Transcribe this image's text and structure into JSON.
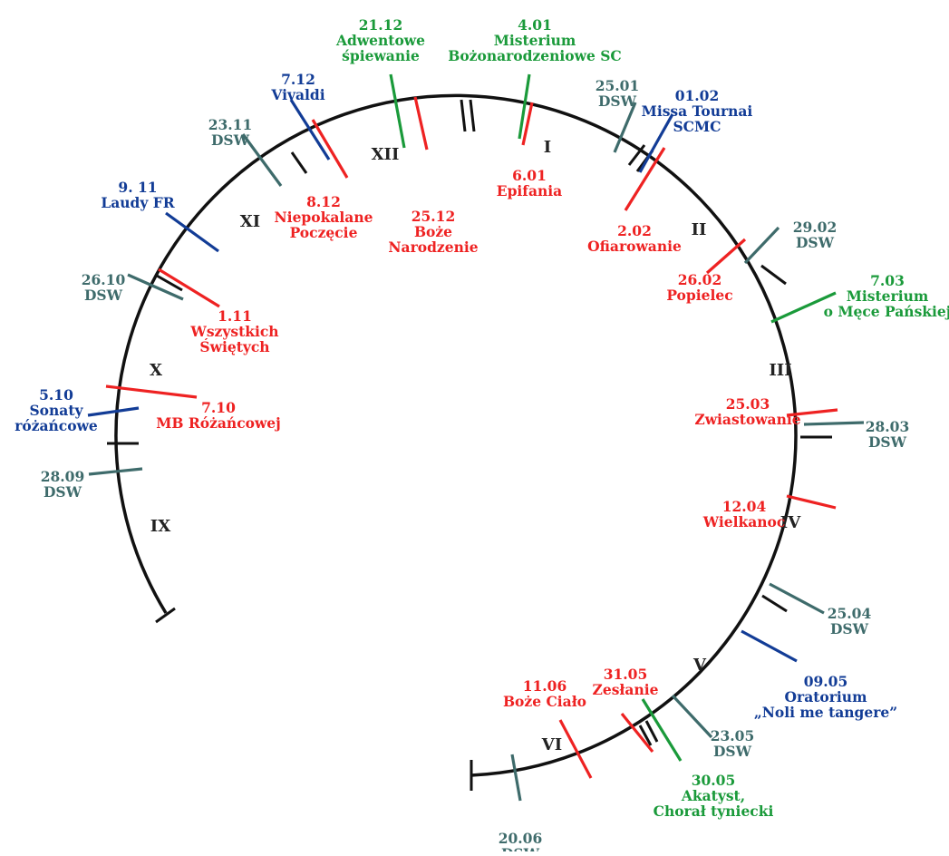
{
  "colors": {
    "circle": "#111111",
    "red": "#ee2222",
    "green": "#1a9a3a",
    "blue": "#123c96",
    "teal": "#3e6b6b"
  },
  "months": [
    "I",
    "II",
    "III",
    "IV",
    "V",
    "VI",
    "IX",
    "X",
    "XI",
    "XII"
  ],
  "events": [
    {
      "color": "green",
      "lines": [
        "4.01",
        "Misterium",
        "Bożonarodzeniowe SC"
      ]
    },
    {
      "color": "red",
      "lines": [
        "6.01",
        "Epifania"
      ]
    },
    {
      "color": "teal",
      "lines": [
        "25.01",
        "DSW"
      ]
    },
    {
      "color": "blue",
      "lines": [
        "01.02",
        "Missa Tournai",
        "SCMC"
      ]
    },
    {
      "color": "red",
      "lines": [
        "2.02",
        "Ofiarowanie"
      ]
    },
    {
      "color": "teal",
      "lines": [
        "29.02",
        "DSW"
      ]
    },
    {
      "color": "red",
      "lines": [
        "26.02",
        "Popielec"
      ]
    },
    {
      "color": "green",
      "lines": [
        "7.03",
        "Misterium",
        "o Męce Pańskiej"
      ]
    },
    {
      "color": "red",
      "lines": [
        "25.03",
        "Zwiastowanie"
      ]
    },
    {
      "color": "teal",
      "lines": [
        "28.03",
        "DSW"
      ]
    },
    {
      "color": "red",
      "lines": [
        "12.04",
        "Wielkanoc"
      ]
    },
    {
      "color": "teal",
      "lines": [
        "25.04",
        "DSW"
      ]
    },
    {
      "color": "blue",
      "lines": [
        "09.05",
        "Oratorium",
        "„Noli me tangere”"
      ]
    },
    {
      "color": "teal",
      "lines": [
        "23.05",
        "DSW"
      ]
    },
    {
      "color": "red",
      "lines": [
        "31.05",
        "Zesłanie"
      ]
    },
    {
      "color": "green",
      "lines": [
        "30.05",
        "Akatyst,",
        "Chorał tyniecki"
      ]
    },
    {
      "color": "red",
      "lines": [
        "11.06",
        "Boże Ciało"
      ]
    },
    {
      "color": "teal",
      "lines": [
        "20.06",
        "DSW"
      ]
    },
    {
      "color": "teal",
      "lines": [
        "28.09",
        "DSW"
      ]
    },
    {
      "color": "blue",
      "lines": [
        "5.10",
        "Sonaty",
        "różańcowe"
      ]
    },
    {
      "color": "red",
      "lines": [
        "7.10",
        "MB Różańcowej"
      ]
    },
    {
      "color": "teal",
      "lines": [
        "26.10",
        "DSW"
      ]
    },
    {
      "color": "red",
      "lines": [
        "1.11",
        "Wszystkich",
        "Świętych"
      ]
    },
    {
      "color": "blue",
      "lines": [
        "9. 11",
        "Laudy FR"
      ]
    },
    {
      "color": "teal",
      "lines": [
        "23.11",
        "DSW"
      ]
    },
    {
      "color": "blue",
      "lines": [
        "7.12",
        "Vivaldi"
      ]
    },
    {
      "color": "red",
      "lines": [
        "8.12",
        "Niepokalane",
        "Poczęcie"
      ]
    },
    {
      "color": "green",
      "lines": [
        "21.12",
        "Adwentowe",
        "śpiewanie"
      ]
    },
    {
      "color": "red",
      "lines": [
        "25.12",
        "Boże",
        "Narodzenie"
      ]
    }
  ]
}
